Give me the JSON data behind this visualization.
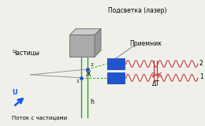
{
  "bg_color": "#f0f0eb",
  "laser_label": "Подсветка (лазер)",
  "receiver_label": "Приемник",
  "particles_label": "Частицы",
  "flow_label": "Поток с частицами",
  "U_label": "U",
  "h_label": "h",
  "deltaT_label": "ΔT",
  "label1": "1",
  "label2": "2"
}
